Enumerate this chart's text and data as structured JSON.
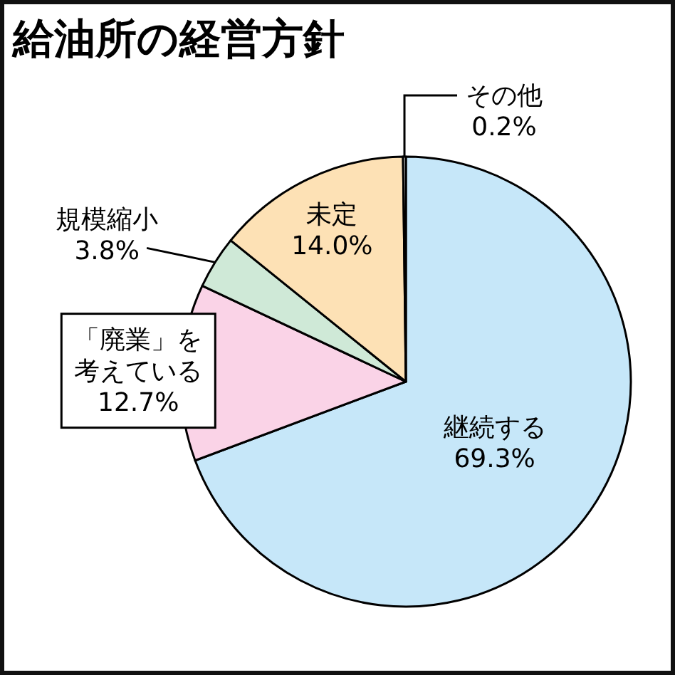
{
  "chart_data": {
    "type": "pie",
    "title": "給油所の経営方針",
    "categories": [
      "継続する",
      "「廃業」を考えている",
      "規模縮小",
      "未定",
      "その他"
    ],
    "values": [
      69.3,
      12.7,
      3.8,
      14.0,
      0.2
    ],
    "colors": [
      "#c6e7f9",
      "#fad3e7",
      "#cfe9d7",
      "#fde1b5",
      "#ffffff"
    ],
    "value_labels": [
      "69.3%",
      "12.7%",
      "3.8%",
      "14.0%",
      "0.2%"
    ]
  }
}
